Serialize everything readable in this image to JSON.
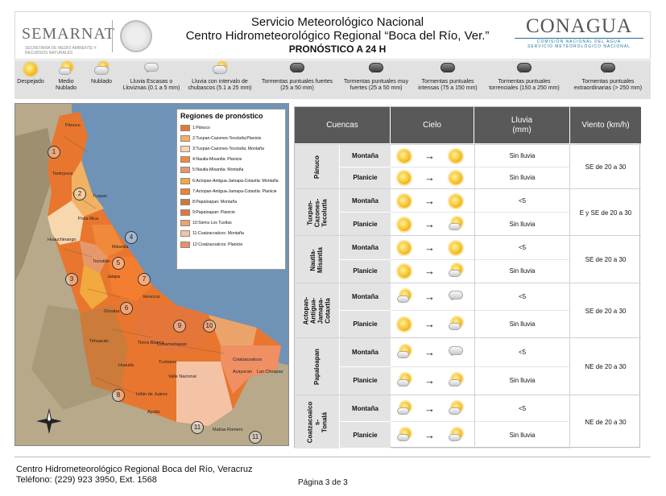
{
  "header": {
    "title1": "Servicio Meteorológico Nacional",
    "title2": "Centro Hidrometeorológico Regional “Boca del Río, Ver.”",
    "title3": "PRONÓSTICO A 24 H",
    "left_logo": "SEMARNAT",
    "left_logo_sub": "SECRETARÍA DE MEDIO AMBIENTE Y RECURSOS NATURALES",
    "right_logo": "CONAGUA",
    "right_logo_sub": "COMISIÓN NACIONAL DEL AGUA",
    "right_logo_sub2": "SERVICIO METEOROLÓGICO NACIONAL"
  },
  "legend": [
    {
      "label": "Despejado",
      "icon": "sun-icon"
    },
    {
      "label": "Medio Nublado",
      "icon": "partly-cloudy-icon"
    },
    {
      "label": "Nublado",
      "icon": "cloudy-icon"
    },
    {
      "label": "Lluvia Escasas o Lloviznas (0.1 a 5 mm)",
      "icon": "drizzle-icon"
    },
    {
      "label": "Lluvia con intervalo de chubascos (5.1 a 25 mm)",
      "icon": "showers-icon"
    },
    {
      "label": "Tormentas puntuales fuertes (25 a 50 mm)",
      "icon": "storm-strong-icon"
    },
    {
      "label": "Tormentas puntuales muy fuertes (25 a 50 mm)",
      "icon": "storm-very-strong-icon"
    },
    {
      "label": "Tormentas puntuales intensas (75 a 150 mm)",
      "icon": "storm-intense-icon"
    },
    {
      "label": "Tormentas puntuales torrenciales (150 a 250 mm)",
      "icon": "storm-torrential-icon"
    },
    {
      "label": "Tormentas puntuales extraordinarias (> 250 mm)",
      "icon": "storm-extraordinary-icon"
    }
  ],
  "map": {
    "legend_title": "Regiones de pronóstico",
    "regions": [
      {
        "label": "1:Pánuco",
        "color": "#e8762e"
      },
      {
        "label": "2:Tuxpan-Cazones-Tecolutla;Planicie",
        "color": "#f2b263"
      },
      {
        "label": "3:Tuxpan-Cazones-Tecolutla; Montaña",
        "color": "#f6d7ae"
      },
      {
        "label": "4:Nautla-Misantla: Planicie",
        "color": "#f08a3a"
      },
      {
        "label": "5:Nautla-Misantla: Montaña",
        "color": "#e7986a"
      },
      {
        "label": "6:Actopan-Antigua-Jamapa-Cotaxtla: Montaña",
        "color": "#f2a93e"
      },
      {
        "label": "7:Actopan-Antigua-Jamapa-Cotaxtla: Planicie",
        "color": "#f37e30"
      },
      {
        "label": "8:Papaloapan: Montaña",
        "color": "#cc7b3a"
      },
      {
        "label": "9:Papaloapan: Planicie",
        "color": "#e5763a"
      },
      {
        "label": "10:Sierra Los Tuxtlas",
        "color": "#eaa46a"
      },
      {
        "label": "11:Coatzacoalcos: Montaña",
        "color": "#f4c3a5"
      },
      {
        "label": "12:Coatzacoalcos: Planicie",
        "color": "#ef8f63"
      }
    ],
    "places": [
      "Pánuco",
      "Tantoyuca",
      "Tuxpan",
      "Poza Rica",
      "Huauchinango",
      "Misantla",
      "Teziutlán",
      "Jalapa",
      "Orizaba",
      "Veracruz",
      "Tehuacán",
      "Tierra Blanca",
      "Cosamaloapan",
      "Huautla",
      "Acayucan",
      "Coatzacoalcos",
      "Tuxtepec",
      "Valle Nacional",
      "Ixtlán de Juárez",
      "Ayutla",
      "Matías Romero",
      "Las Choapas"
    ],
    "numbers": [
      "1",
      "2",
      "3",
      "4",
      "5",
      "6",
      "7",
      "8",
      "9",
      "10",
      "11",
      "11"
    ]
  },
  "table": {
    "headers": {
      "cuencas": "Cuencas",
      "cielo": "Cielo",
      "lluvia": "Lluvia\n(mm)",
      "viento": "Viento (km/h)"
    },
    "groups": [
      {
        "name": "Pánuco",
        "viento": "SE de 20 a 30",
        "rows": [
          {
            "zona": "Montaña",
            "cielo_from": "sun",
            "cielo_to": "sun",
            "lluvia": "Sin lluvia"
          },
          {
            "zona": "Planicie",
            "cielo_from": "sun",
            "cielo_to": "sun",
            "lluvia": "Sin lluvia"
          }
        ]
      },
      {
        "name": "Tuxpan-\nCazones-\nTecolutla",
        "viento": "E y SE de 20 a 30",
        "rows": [
          {
            "zona": "Montaña",
            "cielo_from": "sun",
            "cielo_to": "sun",
            "lluvia": "<5"
          },
          {
            "zona": "Planicie",
            "cielo_from": "sun",
            "cielo_to": "partly",
            "lluvia": "Sin lluvia"
          }
        ]
      },
      {
        "name": "Nautla-\nMisantla",
        "viento": "SE de 20 a 30",
        "rows": [
          {
            "zona": "Montaña",
            "cielo_from": "sun",
            "cielo_to": "sun",
            "lluvia": "<5"
          },
          {
            "zona": "Planicie",
            "cielo_from": "sun",
            "cielo_to": "partly",
            "lluvia": "Sin lluvia"
          }
        ]
      },
      {
        "name": "Actopan-\nAntigua-\nJamapa-\nCotaxtla",
        "viento": "SE de 20 a 30",
        "rows": [
          {
            "zona": "Montaña",
            "cielo_from": "partly",
            "cielo_to": "drizzle",
            "lluvia": "<5"
          },
          {
            "zona": "Planicie",
            "cielo_from": "sun",
            "cielo_to": "partly",
            "lluvia": "Sin lluvia"
          }
        ]
      },
      {
        "name": "Papaloapan",
        "viento": "NE de 20 a 30",
        "rows": [
          {
            "zona": "Montaña",
            "cielo_from": "partly",
            "cielo_to": "drizzle",
            "lluvia": "<5"
          },
          {
            "zona": "Planicie",
            "cielo_from": "partly",
            "cielo_to": "partly",
            "lluvia": "Sin lluvia"
          }
        ]
      },
      {
        "name": "Coatzacoalco\ns-\nTonalá",
        "viento": "NE de 20 a 30",
        "rows": [
          {
            "zona": "Montaña",
            "cielo_from": "partly",
            "cielo_to": "partly",
            "lluvia": "<5"
          },
          {
            "zona": "Planicie",
            "cielo_from": "partly",
            "cielo_to": "partly",
            "lluvia": "Sin lluvia"
          }
        ]
      }
    ],
    "arrow": "→"
  },
  "footer": {
    "line1": "Centro Hidrometeorológico Regional Boca del Río, Veracruz",
    "line2": "Teléfono: (229) 923 3950, Ext. 1568",
    "page": "Página 3 de 3"
  }
}
